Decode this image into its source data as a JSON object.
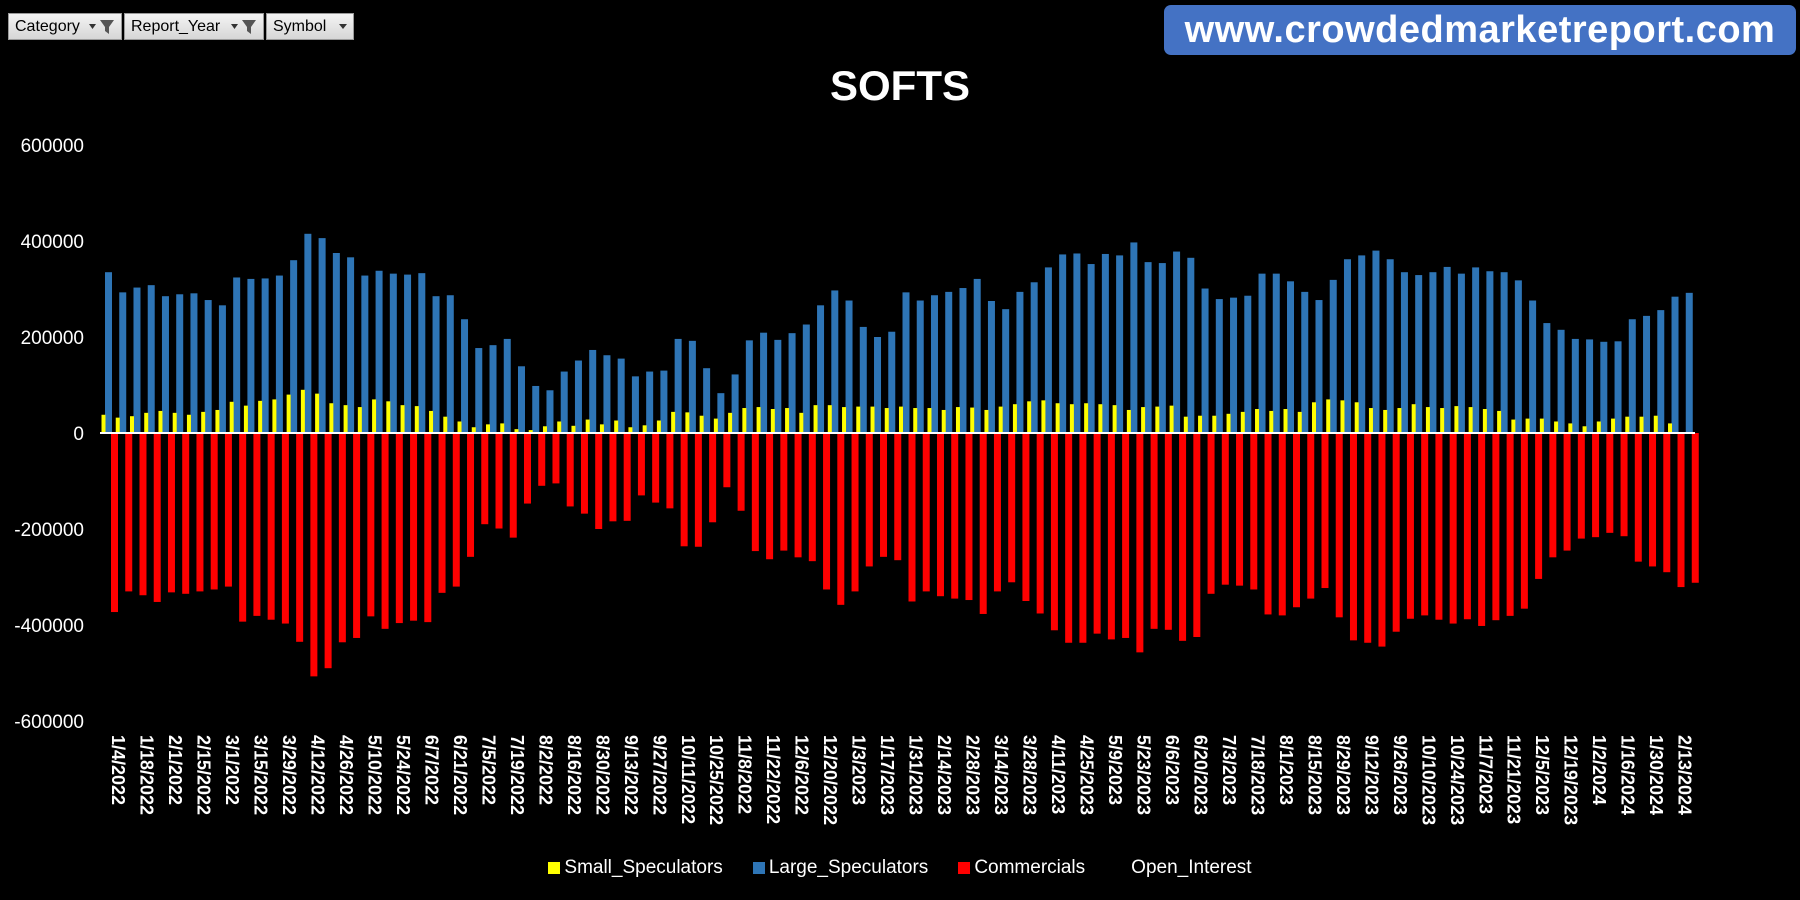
{
  "filters": [
    {
      "label": "Category",
      "icon": "filter-icon"
    },
    {
      "label": "Report_Year",
      "icon": "filter-icon"
    },
    {
      "label": "Symbol",
      "icon": "dropdown-icon"
    }
  ],
  "banner": "www.crowdedmarketreport.com",
  "colors": {
    "small": "#ffff00",
    "large": "#2e75b6",
    "commercials": "#ff0000",
    "background": "#000000"
  },
  "chart_data": {
    "type": "bar",
    "title": "SOFTS",
    "ylim": [
      -600000,
      600000
    ],
    "yticks": [
      600000,
      400000,
      200000,
      0,
      -200000,
      -400000,
      -600000
    ],
    "xtick_labels": [
      "1/4/2022",
      "1/18/2022",
      "2/1/2022",
      "2/15/2022",
      "3/1/2022",
      "3/15/2022",
      "3/29/2022",
      "4/12/2022",
      "4/26/2022",
      "5/10/2022",
      "5/24/2022",
      "6/7/2022",
      "6/21/2022",
      "7/5/2022",
      "7/19/2022",
      "8/2/2022",
      "8/16/2022",
      "8/30/2022",
      "9/13/2022",
      "9/27/2022",
      "10/11/2022",
      "10/25/2022",
      "11/8/2022",
      "11/22/2022",
      "12/6/2022",
      "12/20/2022",
      "1/3/2023",
      "1/17/2023",
      "1/31/2023",
      "2/14/2023",
      "2/28/2023",
      "3/14/2023",
      "3/28/2023",
      "4/11/2023",
      "4/25/2023",
      "5/9/2023",
      "5/23/2023",
      "6/6/2023",
      "6/20/2023",
      "7/3/2023",
      "7/18/2023",
      "8/1/2023",
      "8/15/2023",
      "8/29/2023",
      "9/12/2023",
      "9/26/2023",
      "10/10/2023",
      "10/24/2023",
      "11/7/2023",
      "11/21/2023",
      "12/5/2023",
      "12/19/2023",
      "1/2/2024",
      "1/16/2024",
      "1/30/2024",
      "2/13/2024"
    ],
    "legend": [
      "Small_Speculators",
      "Large_Speculators",
      "Commercials",
      "Open_Interest"
    ],
    "series": [
      {
        "name": "Small_Speculators",
        "values": [
          38000,
          32000,
          35000,
          42000,
          46000,
          42000,
          38000,
          44000,
          48000,
          65000,
          57000,
          67000,
          70000,
          80000,
          90000,
          82000,
          62000,
          58000,
          54000,
          70000,
          66000,
          58000,
          56000,
          46000,
          34000,
          24000,
          12000,
          18000,
          20000,
          8000,
          6000,
          14000,
          24000,
          15000,
          28000,
          18000,
          26000,
          12000,
          16000,
          26000,
          44000,
          43000,
          36000,
          30000,
          42000,
          52000,
          54000,
          50000,
          52000,
          42000,
          58000,
          58000,
          54000,
          55000,
          55000,
          52000,
          55000,
          52000,
          52000,
          48000,
          54000,
          53000,
          48000,
          55000,
          60000,
          66000,
          68000,
          62000,
          60000,
          62000,
          60000,
          58000,
          48000,
          54000,
          55000,
          57000,
          34000,
          36000,
          36000,
          40000,
          44000,
          50000,
          46000,
          50000,
          44000,
          64000,
          70000,
          68000,
          64000,
          52000,
          48000,
          52000,
          60000,
          54000,
          52000,
          56000,
          54000,
          50000,
          46000,
          28000,
          30000,
          30000,
          24000,
          20000,
          14000,
          24000,
          30000,
          34000,
          34000,
          36000,
          20000
        ]
      },
      {
        "name": "Large_Speculators",
        "values": [
          335000,
          293000,
          303000,
          308000,
          285000,
          289000,
          291000,
          277000,
          266000,
          324000,
          321000,
          322000,
          328000,
          360000,
          415000,
          406000,
          375000,
          366000,
          328000,
          338000,
          332000,
          330000,
          333000,
          285000,
          287000,
          237000,
          177000,
          183000,
          196000,
          139000,
          98000,
          89000,
          128000,
          151000,
          173000,
          162000,
          155000,
          118000,
          128000,
          130000,
          196000,
          192000,
          135000,
          83000,
          122000,
          193000,
          209000,
          194000,
          208000,
          226000,
          266000,
          297000,
          276000,
          221000,
          200000,
          211000,
          293000,
          276000,
          287000,
          294000,
          302000,
          321000,
          275000,
          258000,
          294000,
          314000,
          345000,
          372000,
          374000,
          352000,
          373000,
          370000,
          397000,
          356000,
          354000,
          378000,
          365000,
          301000,
          279000,
          282000,
          286000,
          332000,
          332000,
          316000,
          294000,
          277000,
          319000,
          362000,
          370000,
          380000,
          362000,
          335000,
          329000,
          335000,
          346000,
          332000,
          345000,
          337000,
          335000,
          318000,
          276000,
          229000,
          215000,
          196000,
          195000,
          190000,
          191000,
          237000,
          244000,
          256000,
          284000,
          292000
        ]
      },
      {
        "name": "Commercials",
        "values": [
          -373000,
          -330000,
          -338000,
          -352000,
          -332000,
          -335000,
          -330000,
          -326000,
          -320000,
          -393000,
          -381000,
          -389000,
          -397000,
          -435000,
          -507000,
          -490000,
          -436000,
          -427000,
          -382000,
          -408000,
          -396000,
          -391000,
          -394000,
          -333000,
          -320000,
          -258000,
          -190000,
          -199000,
          -218000,
          -147000,
          -110000,
          -105000,
          -153000,
          -168000,
          -200000,
          -184000,
          -183000,
          -130000,
          -145000,
          -157000,
          -236000,
          -237000,
          -186000,
          -113000,
          -162000,
          -246000,
          -263000,
          -245000,
          -259000,
          -267000,
          -326000,
          -358000,
          -330000,
          -278000,
          -258000,
          -265000,
          -351000,
          -330000,
          -340000,
          -345000,
          -348000,
          -377000,
          -330000,
          -311000,
          -350000,
          -376000,
          -411000,
          -437000,
          -437000,
          -418000,
          -430000,
          -427000,
          -457000,
          -408000,
          -410000,
          -433000,
          -425000,
          -335000,
          -316000,
          -318000,
          -326000,
          -378000,
          -380000,
          -363000,
          -345000,
          -323000,
          -384000,
          -432000,
          -437000,
          -445000,
          -414000,
          -387000,
          -380000,
          -389000,
          -397000,
          -388000,
          -402000,
          -390000,
          -381000,
          -366000,
          -304000,
          -259000,
          -245000,
          -220000,
          -217000,
          -208000,
          -215000,
          -268000,
          -278000,
          -290000,
          -321000,
          -312000
        ]
      },
      {
        "name": "Open_Interest",
        "values": []
      }
    ]
  }
}
